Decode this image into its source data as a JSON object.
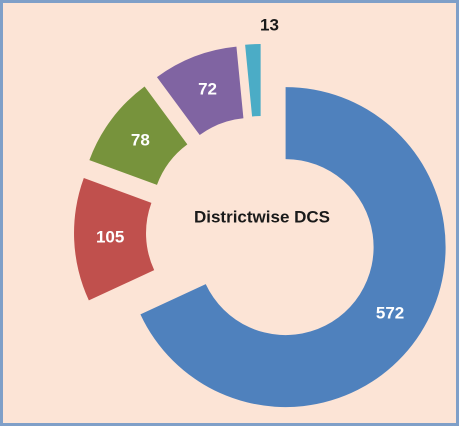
{
  "chart_data": {
    "type": "donut",
    "title": "Districtwise DCS",
    "values": [
      572,
      105,
      78,
      72,
      13
    ],
    "colors": [
      "#4f81bd",
      "#c0504d",
      "#77933c",
      "#8064a2",
      "#4bacc6"
    ]
  }
}
